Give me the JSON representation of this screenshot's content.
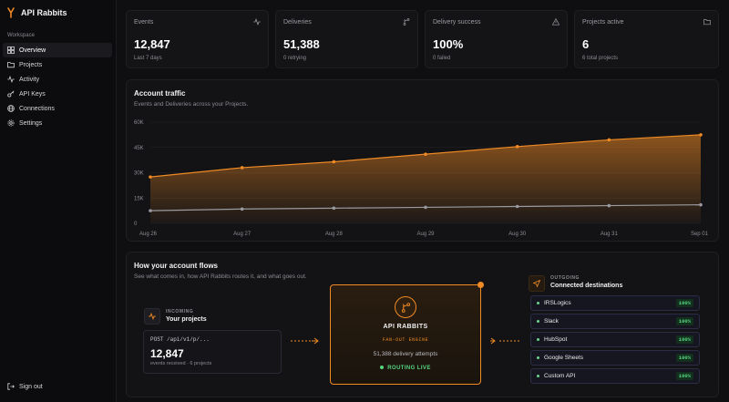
{
  "brand": {
    "name": "API Rabbits"
  },
  "sidebar": {
    "section_label": "Workspace",
    "items": [
      {
        "label": "Overview",
        "icon": "grid-icon",
        "active": true
      },
      {
        "label": "Projects",
        "icon": "folder-icon"
      },
      {
        "label": "Activity",
        "icon": "activity-icon"
      },
      {
        "label": "API Keys",
        "icon": "key-icon"
      },
      {
        "label": "Connections",
        "icon": "globe-icon"
      },
      {
        "label": "Settings",
        "icon": "gear-icon"
      }
    ],
    "signout": "Sign out"
  },
  "stats": [
    {
      "label": "Events",
      "value": "12,847",
      "sub": "Last 7 days",
      "icon": "activity-icon"
    },
    {
      "label": "Deliveries",
      "value": "51,388",
      "sub": "0 retrying",
      "icon": "branch-icon"
    },
    {
      "label": "Delivery success",
      "value": "100%",
      "sub": "0 failed",
      "icon": "warning-icon"
    },
    {
      "label": "Projects active",
      "value": "6",
      "sub": "6 total projects",
      "icon": "folder-icon"
    }
  ],
  "traffic": {
    "title": "Account traffic",
    "subtitle": "Events and Deliveries across your Projects."
  },
  "chart_data": {
    "type": "area",
    "title": "Account traffic",
    "categories": [
      "Aug 26",
      "Aug 27",
      "Aug 28",
      "Aug 29",
      "Aug 30",
      "Aug 31",
      "Sep 01"
    ],
    "y_ticks": [
      "60K",
      "45K",
      "30K",
      "15K",
      "0"
    ],
    "ylim": [
      0,
      60000
    ],
    "series": [
      {
        "values": [
          27500,
          33000,
          36500,
          41000,
          45500,
          49500,
          52500
        ],
        "color": "#f08a24",
        "fill": true
      },
      {
        "values": [
          7500,
          8500,
          9000,
          9500,
          10000,
          10500,
          11000
        ],
        "color": "#9a9aa0",
        "fill": false
      }
    ],
    "grid": true
  },
  "flows": {
    "title": "How your account flows",
    "subtitle": "See what comes in, how API Rabbits routes it, and what goes out.",
    "incoming": {
      "kicker": "INCOMING",
      "title": "Your projects",
      "endpoint": "POST /api/v1/p/...",
      "count": "12,847",
      "detail": "events received · 6 projects"
    },
    "engine": {
      "title": "API RABBITS",
      "kicker": "FAN-OUT ENGINE",
      "attempts": "51,388 delivery attempts",
      "status": "ROUTING LIVE"
    },
    "outgoing": {
      "kicker": "OUTGOING",
      "title": "Connected destinations",
      "destinations": [
        {
          "name": "IRSLogics",
          "pct": "100%"
        },
        {
          "name": "Slack",
          "pct": "100%"
        },
        {
          "name": "HubSpot",
          "pct": "100%"
        },
        {
          "name": "Google Sheets",
          "pct": "100%"
        },
        {
          "name": "Custom API",
          "pct": "100%"
        }
      ]
    }
  }
}
